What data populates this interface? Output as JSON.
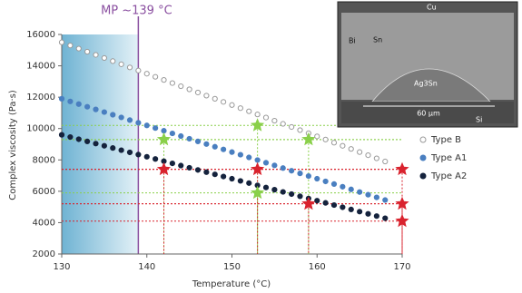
{
  "chart_data": {
    "type": "scatter",
    "x_label": "Temperature (°C)",
    "y_label": "Complex viscosity (Pa·s)",
    "xlim": [
      130,
      170
    ],
    "ylim": [
      2000,
      16000
    ],
    "xticks": [
      130,
      140,
      150,
      160,
      170
    ],
    "yticks": [
      2000,
      4000,
      6000,
      8000,
      10000,
      12000,
      14000,
      16000
    ],
    "x": [
      130,
      131,
      132,
      133,
      134,
      135,
      136,
      137,
      138,
      139,
      140,
      141,
      142,
      143,
      144,
      145,
      146,
      147,
      148,
      149,
      150,
      151,
      152,
      153,
      154,
      155,
      156,
      157,
      158,
      159,
      160,
      161,
      162,
      163,
      164,
      165,
      166,
      167,
      168
    ],
    "series": [
      {
        "name": "Type B",
        "color": "#9a9a9a",
        "marker": "open",
        "values": [
          15500,
          15300,
          15100,
          14900,
          14700,
          14500,
          14300,
          14100,
          13900,
          13700,
          13500,
          13300,
          13100,
          12900,
          12700,
          12500,
          12300,
          12100,
          11900,
          11700,
          11500,
          11300,
          11100,
          10900,
          10700,
          10500,
          10300,
          10100,
          9900,
          9700,
          9500,
          9300,
          9100,
          8900,
          8700,
          8500,
          8300,
          8100,
          7900
        ]
      },
      {
        "name": "Type A1",
        "color": "#4a7fc0",
        "marker": "filled",
        "values": [
          11900,
          11730,
          11560,
          11390,
          11220,
          11050,
          10880,
          10710,
          10540,
          10370,
          10200,
          10030,
          9860,
          9690,
          9520,
          9350,
          9180,
          9010,
          8840,
          8670,
          8500,
          8330,
          8160,
          7990,
          7820,
          7650,
          7480,
          7310,
          7140,
          6970,
          6800,
          6630,
          6460,
          6290,
          6120,
          5950,
          5780,
          5610,
          5440
        ]
      },
      {
        "name": "Type A2",
        "color": "#15233d",
        "marker": "filled",
        "values": [
          9600,
          9460,
          9320,
          9180,
          9040,
          8900,
          8760,
          8620,
          8480,
          8340,
          8200,
          8060,
          7920,
          7780,
          7640,
          7500,
          7360,
          7220,
          7080,
          6940,
          6800,
          6660,
          6520,
          6380,
          6240,
          6100,
          5960,
          5820,
          5680,
          5540,
          5400,
          5260,
          5120,
          4980,
          4840,
          4700,
          4560,
          4420,
          4280
        ]
      }
    ],
    "highlights": [
      {
        "color": "#8ad04a",
        "x": [
          142,
          153,
          153,
          159
        ],
        "values": [
          9300,
          10200,
          5900,
          9300
        ]
      },
      {
        "color": "#d9232e",
        "x": [
          142,
          153,
          159,
          170,
          170,
          170
        ],
        "values": [
          7400,
          7400,
          5200,
          7400,
          5200,
          4100
        ]
      }
    ],
    "melting_point": {
      "label": "MP ~139 °C",
      "value": 139,
      "shade_from": 130,
      "color": "#8a4fa0"
    }
  },
  "inset": {
    "labels": [
      "Cu",
      "Bi",
      "Sn",
      "Ag3Sn",
      "60 µm",
      "Si"
    ]
  }
}
